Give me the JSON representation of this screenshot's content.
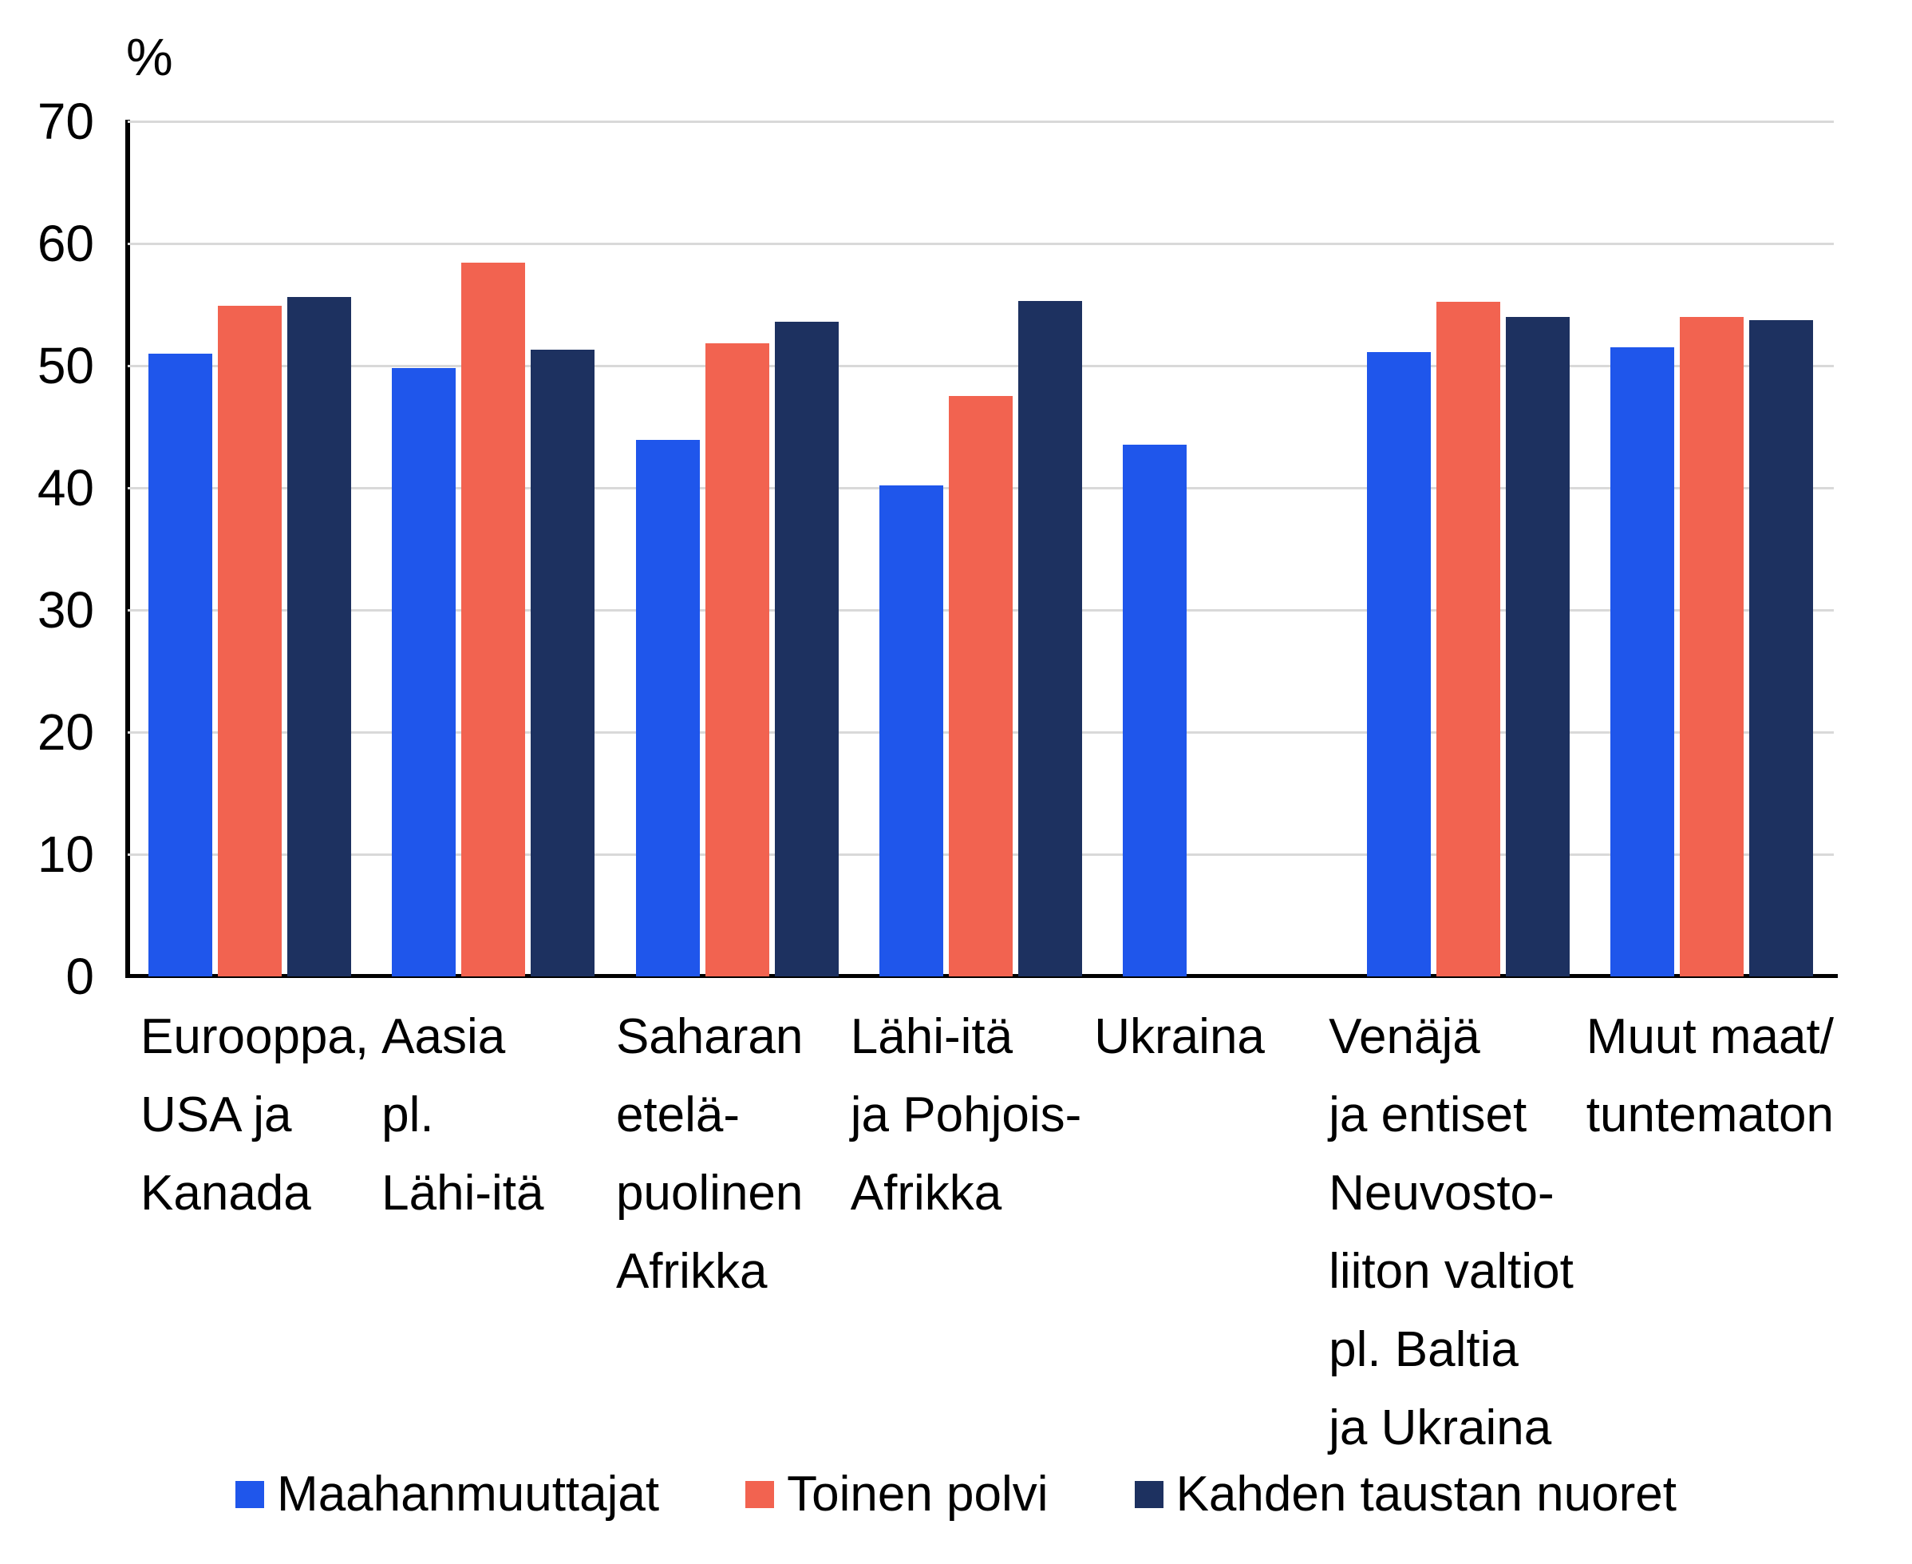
{
  "figure": {
    "background": "#FFFFFF"
  },
  "chart_data": {
    "type": "bar",
    "title": "",
    "y_axis_unit": "%",
    "ylim": [
      0,
      70
    ],
    "yticks": [
      0,
      10,
      20,
      30,
      40,
      50,
      60,
      70
    ],
    "grid": "horizontal",
    "gridline_color": "#D9D9D9",
    "axis_color": "#000000",
    "text_color": "#000000",
    "legend_position": "bottom",
    "categories": [
      "Eurooppa, USA ja Kanada",
      "Aasia pl. Lähi-itä",
      "Saharan eteläpuolinen Afrikka",
      "Lähi-itä ja Pohjois-Afrikka",
      "Ukraina",
      "Venäjä ja entiset Neuvostoliiton valtiot pl. Baltia ja Ukraina",
      "Muut maat/tuntematon"
    ],
    "category_label_lines": [
      [
        "Eurooppa,",
        "USA ja",
        "Kanada"
      ],
      [
        "Aasia",
        "pl.",
        "Lähi-itä"
      ],
      [
        "Saharan",
        "etelä-",
        "puolinen",
        "Afrikka"
      ],
      [
        "Lähi-itä",
        "ja Pohjois-",
        "Afrikka"
      ],
      [
        "Ukraina"
      ],
      [
        "Venäjä",
        "ja entiset",
        "Neuvosto-",
        "liiton valtiot",
        "pl. Baltia",
        "ja Ukraina"
      ],
      [
        "Muut maat/",
        "tuntematon"
      ]
    ],
    "series": [
      {
        "name": "Maahanmuuttajat",
        "color": "#1F56EB",
        "values": [
          51.0,
          49.8,
          43.9,
          40.2,
          43.5,
          51.1,
          51.5
        ]
      },
      {
        "name": "Toinen polvi",
        "color": "#F26350",
        "values": [
          54.9,
          58.4,
          51.8,
          47.5,
          null,
          55.2,
          54.0
        ]
      },
      {
        "name": "Kahden taustan nuoret",
        "color": "#1D3160",
        "values": [
          55.6,
          51.3,
          53.6,
          55.3,
          null,
          54.0,
          53.7
        ]
      }
    ]
  }
}
